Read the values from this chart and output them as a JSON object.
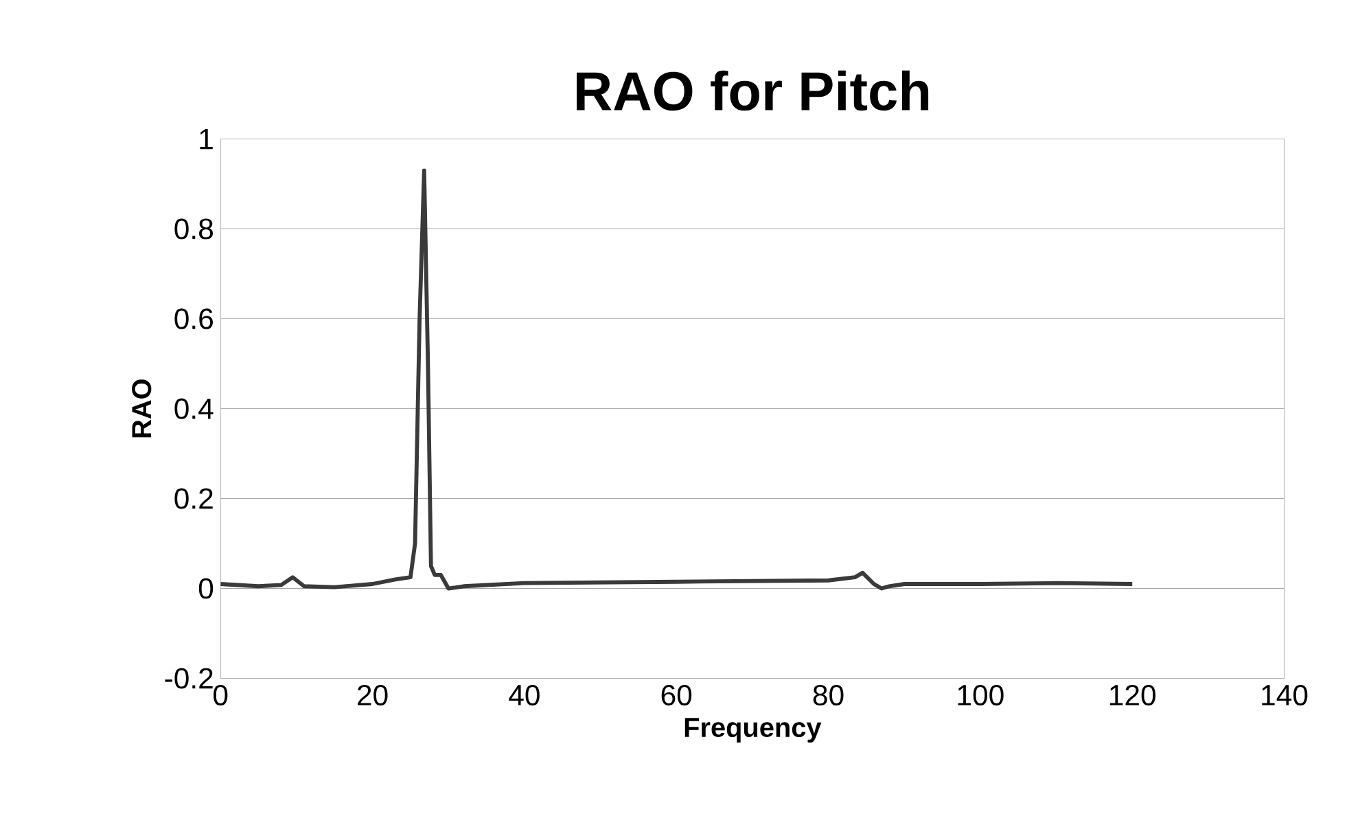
{
  "chart_data": {
    "type": "line",
    "title": "RAO for Pitch",
    "xlabel": "Frequency",
    "ylabel": "RAO",
    "xlim": [
      0,
      140
    ],
    "xticks": [
      0,
      20,
      40,
      60,
      80,
      100,
      120,
      140
    ],
    "ylim": [
      -0.2,
      1
    ],
    "yticks": [
      -0.2,
      0,
      0.2,
      0.4,
      0.6,
      0.8,
      1
    ],
    "grid": "y",
    "marker": "none",
    "series": [
      {
        "color": "#3a3a3a",
        "x": [
          0,
          5,
          8,
          9.5,
          11,
          15,
          20,
          23,
          25,
          25.6,
          26.2,
          26.8,
          27.3,
          27.7,
          28.2,
          29,
          30,
          32,
          40,
          60,
          80,
          83.5,
          84.5,
          86,
          87,
          88,
          90,
          100,
          110,
          120
        ],
        "values": [
          0.01,
          0.005,
          0.008,
          0.025,
          0.005,
          0.003,
          0.01,
          0.02,
          0.025,
          0.1,
          0.6,
          0.93,
          0.5,
          0.05,
          0.03,
          0.03,
          0.0,
          0.005,
          0.012,
          0.015,
          0.018,
          0.025,
          0.035,
          0.01,
          0.0,
          0.005,
          0.01,
          0.01,
          0.012,
          0.01
        ]
      }
    ]
  }
}
